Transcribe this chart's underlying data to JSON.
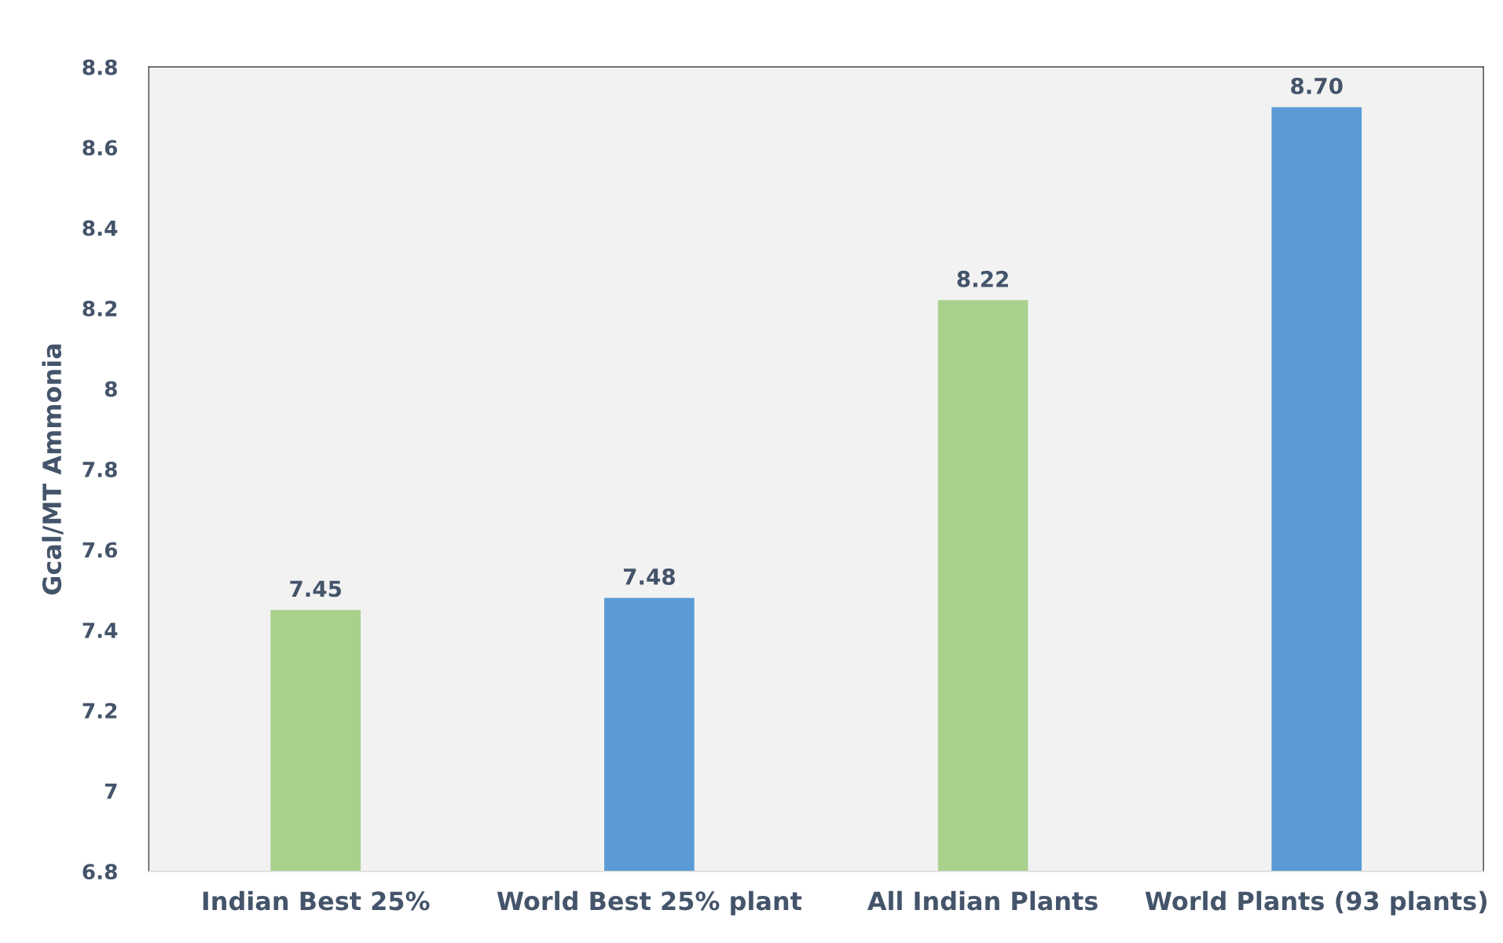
{
  "chart_data": {
    "type": "bar",
    "ylabel": "Gcal/MT Ammonia",
    "categories": [
      "Indian Best 25%",
      "World Best 25% plant",
      "All Indian Plants",
      "World Plants (93 plants)"
    ],
    "values": [
      7.45,
      7.48,
      8.22,
      8.7
    ],
    "colors": [
      "#a9d18e",
      "#5b9bd5",
      "#a9d18e",
      "#5b9bd5"
    ],
    "value_labels": [
      "7.45",
      "7.48",
      "8.22",
      "8.70"
    ],
    "ylim": [
      6.8,
      8.8
    ],
    "yticks": [
      6.8,
      7,
      7.2,
      7.4,
      7.6,
      7.8,
      8,
      8.2,
      8.4,
      8.6,
      8.8
    ],
    "grid": false,
    "legend": false
  }
}
